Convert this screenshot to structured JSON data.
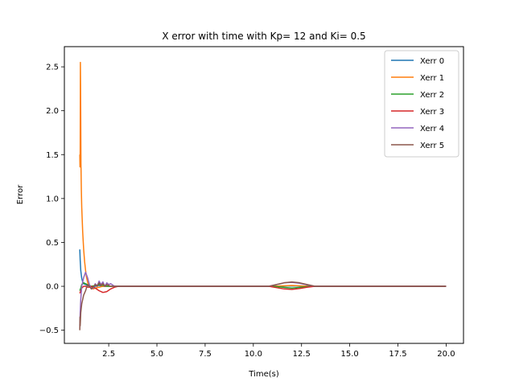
{
  "chart_data": {
    "type": "line",
    "title": "X error with time with Kp= 12 and Ki= 0.5",
    "xlabel": "Time(s)",
    "ylabel": "Error",
    "xlim": [
      0.2,
      20.9
    ],
    "ylim": [
      -0.65,
      2.73
    ],
    "xticks": [
      2.5,
      5.0,
      7.5,
      10.0,
      12.5,
      15.0,
      17.5,
      20.0
    ],
    "xtick_labels": [
      "2.5",
      "5.0",
      "7.5",
      "10.0",
      "12.5",
      "15.0",
      "17.5",
      "20.0"
    ],
    "yticks": [
      -0.5,
      0.0,
      0.5,
      1.0,
      1.5,
      2.0,
      2.5
    ],
    "ytick_labels": [
      "−0.5",
      "0.0",
      "0.5",
      "1.0",
      "1.5",
      "2.0",
      "2.5"
    ],
    "grid": false,
    "legend_position": "top-right",
    "series": [
      {
        "name": "Xerr 0",
        "color": "#1f77b4",
        "x": [
          1.0,
          1.02,
          1.05,
          1.1,
          1.15,
          1.2,
          1.3,
          1.4,
          1.5,
          1.6,
          1.8,
          2.0,
          2.2,
          2.5,
          3.0,
          5.0,
          10.0,
          11.0,
          12.0,
          13.0,
          15.0,
          20.0
        ],
        "y": [
          0.42,
          0.3,
          0.18,
          0.09,
          0.05,
          0.03,
          0.02,
          0.01,
          0.0,
          -0.01,
          0.0,
          0.01,
          0.0,
          0.0,
          0.0,
          0.0,
          0.0,
          0.0,
          0.005,
          0.0,
          0.0,
          0.0
        ]
      },
      {
        "name": "Xerr 1",
        "color": "#ff7f0e",
        "x": [
          1.0,
          1.01,
          1.02,
          1.03,
          1.04,
          1.05,
          1.06,
          1.08,
          1.1,
          1.15,
          1.2,
          1.25,
          1.3,
          1.35,
          1.4,
          1.45,
          1.5,
          1.6,
          1.7,
          1.8,
          2.0,
          2.2,
          2.5,
          3.0,
          4.0,
          10.0,
          11.0,
          12.0,
          13.0,
          15.0,
          20.0
        ],
        "y": [
          1.5,
          1.36,
          1.55,
          2.55,
          2.3,
          1.9,
          1.4,
          1.1,
          0.9,
          0.62,
          0.42,
          0.28,
          0.18,
          0.1,
          0.05,
          0.02,
          0.0,
          -0.02,
          -0.03,
          -0.02,
          -0.01,
          0.0,
          0.0,
          0.0,
          0.0,
          0.0,
          0.0,
          0.01,
          0.0,
          0.0,
          0.0
        ]
      },
      {
        "name": "Xerr 2",
        "color": "#2ca02c",
        "x": [
          1.0,
          1.05,
          1.1,
          1.2,
          1.3,
          1.4,
          1.5,
          1.6,
          1.8,
          2.0,
          2.2,
          2.4,
          2.6,
          3.0,
          5.0,
          10.0,
          11.0,
          11.5,
          12.0,
          12.5,
          13.0,
          15.0,
          20.0
        ],
        "y": [
          -0.05,
          -0.02,
          0.02,
          0.04,
          0.03,
          0.02,
          0.01,
          0.0,
          0.01,
          0.02,
          0.01,
          0.0,
          0.0,
          0.0,
          0.0,
          0.0,
          0.0,
          -0.01,
          -0.02,
          -0.01,
          0.0,
          0.0,
          0.0
        ]
      },
      {
        "name": "Xerr 3",
        "color": "#d62728",
        "x": [
          1.0,
          1.05,
          1.1,
          1.2,
          1.3,
          1.4,
          1.5,
          1.6,
          1.8,
          2.0,
          2.2,
          2.4,
          2.6,
          2.8,
          3.0,
          4.0,
          10.0,
          10.8,
          11.2,
          11.6,
          12.0,
          12.4,
          12.8,
          13.2,
          14.0,
          20.0
        ],
        "y": [
          -0.08,
          -0.05,
          -0.02,
          0.0,
          0.0,
          -0.01,
          -0.01,
          0.0,
          -0.02,
          -0.05,
          -0.07,
          -0.06,
          -0.03,
          -0.01,
          0.0,
          0.0,
          0.0,
          0.0,
          -0.015,
          -0.03,
          -0.035,
          -0.025,
          -0.01,
          0.0,
          0.0,
          0.0
        ]
      },
      {
        "name": "Xerr 4",
        "color": "#9467bd",
        "x": [
          1.0,
          1.02,
          1.05,
          1.1,
          1.2,
          1.3,
          1.4,
          1.5,
          1.6,
          1.7,
          1.8,
          1.9,
          2.0,
          2.1,
          2.2,
          2.3,
          2.4,
          2.5,
          2.6,
          2.8,
          3.0,
          5.0,
          10.0,
          10.8,
          11.2,
          11.6,
          12.0,
          12.4,
          12.8,
          13.2,
          14.0,
          20.0
        ],
        "y": [
          -0.45,
          -0.3,
          -0.15,
          0.0,
          0.1,
          0.16,
          0.1,
          0.02,
          -0.03,
          -0.02,
          0.03,
          0.0,
          0.06,
          0.02,
          0.05,
          0.0,
          0.04,
          0.02,
          0.03,
          0.0,
          0.0,
          0.0,
          0.0,
          0.0,
          0.02,
          0.04,
          0.045,
          0.035,
          0.015,
          0.0,
          0.0,
          0.0
        ]
      },
      {
        "name": "Xerr 5",
        "color": "#8c564b",
        "x": [
          1.0,
          1.01,
          1.02,
          1.05,
          1.1,
          1.2,
          1.3,
          1.4,
          1.5,
          1.6,
          1.7,
          1.8,
          1.9,
          2.0,
          2.1,
          2.2,
          2.3,
          2.4,
          2.5,
          2.6,
          2.8,
          3.0,
          5.0,
          10.0,
          10.8,
          11.2,
          11.6,
          12.0,
          12.4,
          12.8,
          13.2,
          14.0,
          20.0
        ],
        "y": [
          -0.5,
          -0.35,
          -0.45,
          -0.3,
          -0.2,
          -0.1,
          -0.05,
          0.02,
          0.0,
          -0.03,
          -0.01,
          0.02,
          0.0,
          0.04,
          0.01,
          0.03,
          0.0,
          0.02,
          0.01,
          0.0,
          0.0,
          0.0,
          0.0,
          0.0,
          0.0,
          0.02,
          0.04,
          0.05,
          0.04,
          0.02,
          0.0,
          0.0,
          0.0
        ]
      }
    ]
  }
}
